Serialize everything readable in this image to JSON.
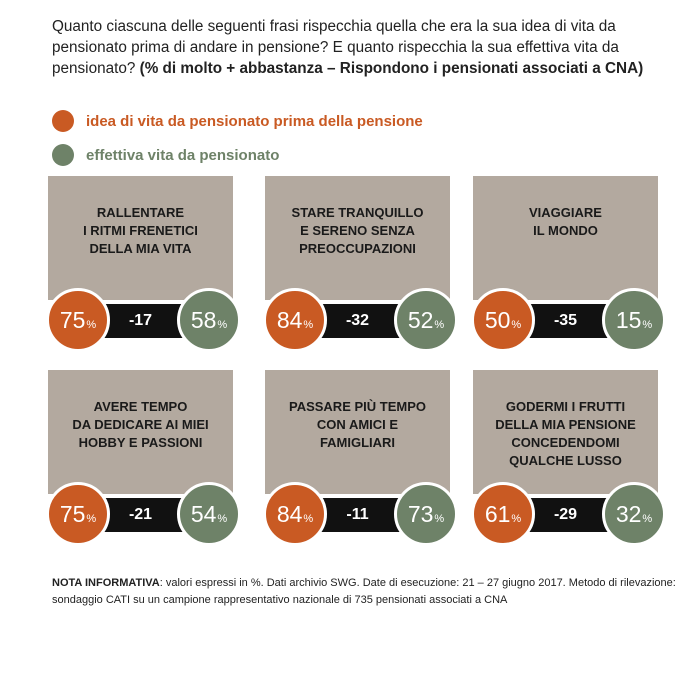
{
  "question": {
    "text": "Quanto ciascuna delle seguenti frasi rispecchia quella che era la sua idea di vita da pensionato prima di andare in pensione? E quanto rispecchia la sua effettiva vita da pensionato? ",
    "bold": "(% di molto + abbastanza – Rispondono i pensionati associati a CNA)"
  },
  "legend": [
    {
      "label": "idea di vita da pensionato prima della pensione",
      "color": "#c95a23"
    },
    {
      "label": "effettiva vita da pensionato",
      "color": "#6e8268"
    }
  ],
  "percent_symbol": "%",
  "chart_data": {
    "type": "table",
    "series_colors": {
      "before": "#c95a23",
      "after": "#6e8268"
    },
    "items": [
      {
        "title": "RALLENTARE\nI RITMI FRENETICI\nDELLA MIA VITA",
        "before": 75,
        "after": 58,
        "diff": "-17"
      },
      {
        "title": "STARE TRANQUILLO\nE SERENO SENZA\nPREOCCUPAZIONI",
        "before": 84,
        "after": 52,
        "diff": "-32"
      },
      {
        "title": "VIAGGIARE\nIL MONDO",
        "before": 50,
        "after": 15,
        "diff": "-35"
      },
      {
        "title": "AVERE TEMPO\nDA DEDICARE AI MIEI\nHOBBY E PASSIONI",
        "before": 75,
        "after": 54,
        "diff": "-21"
      },
      {
        "title": "PASSARE PIÙ TEMPO\nCON AMICI E\nFAMIGLIARI",
        "before": 84,
        "after": 73,
        "diff": "-11"
      },
      {
        "title": "GODERMI I FRUTTI\nDELLA MIA PENSIONE\nCONCEDENDOMI\nQUALCHE LUSSO",
        "before": 61,
        "after": 32,
        "diff": "-29"
      }
    ]
  },
  "note": {
    "bold": "NOTA INFORMATIVA",
    "text": ": valori espressi in %. Dati archivio SWG. Date di esecuzione: 21 – 27 giugno 2017. Metodo di rilevazione: sondaggio CATI su un campione rappresentativo nazionale di 735 pensionati associati a CNA"
  }
}
